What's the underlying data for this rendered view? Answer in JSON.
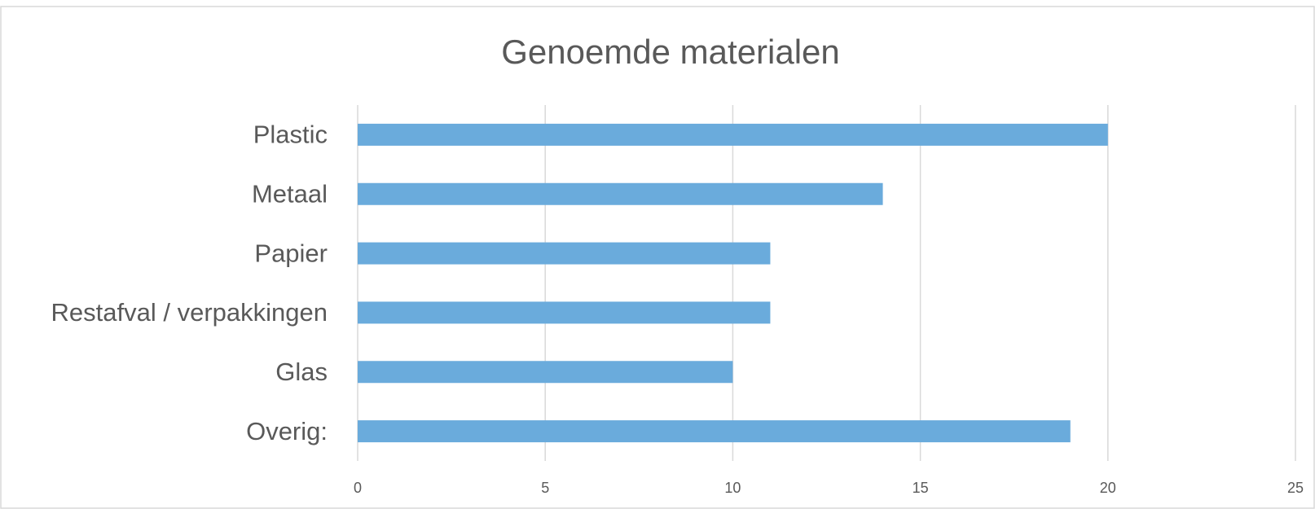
{
  "chart_data": {
    "type": "bar",
    "orientation": "horizontal",
    "title": "Genoemde materialen",
    "categories": [
      "Plastic",
      "Metaal",
      "Papier",
      "Restafval / verpakkingen",
      "Glas",
      "Overig:"
    ],
    "values": [
      20,
      14,
      11,
      11,
      10,
      19
    ],
    "color": "#6aabdc",
    "xlim": [
      0,
      25
    ],
    "xticks": [
      0,
      5,
      10,
      15,
      20,
      25
    ],
    "grid": true
  }
}
